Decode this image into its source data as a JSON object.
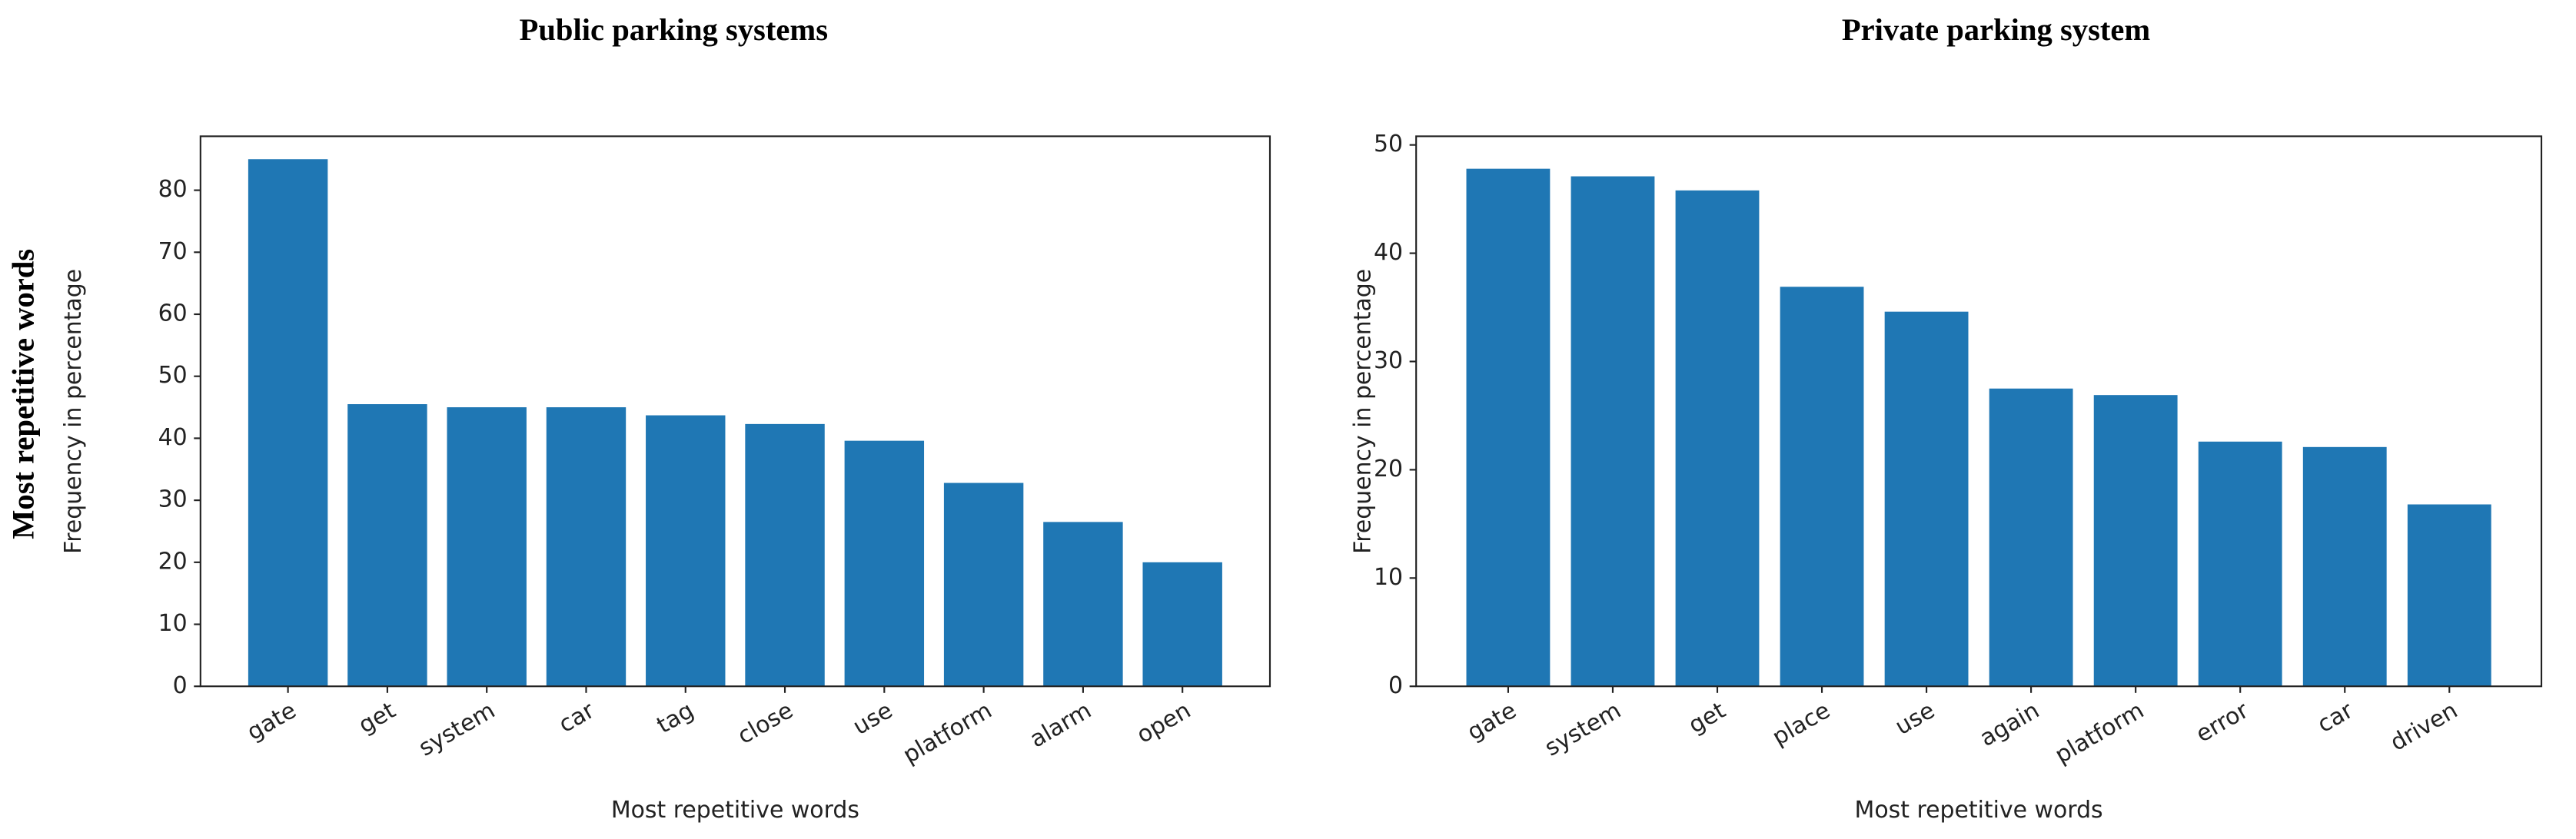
{
  "side_label": "Most repetitive words",
  "chart_data": [
    {
      "type": "bar",
      "title": "Public parking systems",
      "x_label": "Most repetitive words",
      "y_label": "Frequency in percentage",
      "categories": [
        "gate",
        "get",
        "system",
        "car",
        "tag",
        "close",
        "use",
        "platform",
        "alarm",
        "open"
      ],
      "values": [
        85,
        45.5,
        45,
        45,
        43.7,
        42.3,
        39.6,
        32.8,
        26.5,
        20
      ],
      "color": "#1f77b4",
      "ylim": [
        0,
        88.7
      ],
      "yticks": [
        0,
        10,
        20,
        30,
        40,
        50,
        60,
        70,
        80
      ]
    },
    {
      "type": "bar",
      "title": "Private parking system",
      "x_label": "Most repetitive words",
      "y_label": "Frequency in percentage",
      "categories": [
        "gate",
        "system",
        "get",
        "place",
        "use",
        "again",
        "platform",
        "error",
        "car",
        "driven"
      ],
      "values": [
        47.8,
        47.1,
        45.8,
        36.9,
        34.6,
        27.5,
        26.9,
        22.6,
        22.1,
        16.8
      ],
      "color": "#1f77b4",
      "ylim": [
        0,
        50.8
      ],
      "yticks": [
        0,
        10,
        20,
        30,
        40,
        50
      ]
    }
  ]
}
